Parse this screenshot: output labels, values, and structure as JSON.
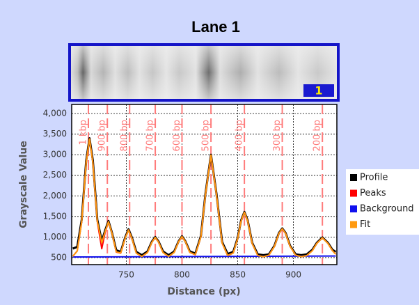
{
  "gel": {
    "lane_label": "1"
  },
  "chart_data": {
    "type": "line",
    "title": "Lane 1",
    "x_label": "Distance (px)",
    "y_label": "Grayscale Value",
    "xlim": [
      701,
      939
    ],
    "ylim": [
      330,
      4220
    ],
    "xticks": [
      750,
      800,
      850,
      900
    ],
    "yticks": [
      500,
      {
        "value": 1000,
        "label": "1,000"
      },
      {
        "value": 1500,
        "label": "1,500"
      },
      {
        "value": 2000,
        "label": "2,000"
      },
      {
        "value": 2500,
        "label": "2,500"
      },
      {
        "value": 3000,
        "label": "3,000"
      },
      {
        "value": 3500,
        "label": "3,500"
      },
      {
        "value": 4000,
        "label": "4,000"
      }
    ],
    "grid": true,
    "legend": "right",
    "markers_color": "#ff7b7b",
    "markers": [
      {
        "x": 716,
        "label": "1 kbp"
      },
      {
        "x": 733,
        "label": "900 bp"
      },
      {
        "x": 753,
        "label": "800 bp"
      },
      {
        "x": 776,
        "label": "700 bp"
      },
      {
        "x": 800,
        "label": "600 bp"
      },
      {
        "x": 826,
        "label": "500 bp"
      },
      {
        "x": 856,
        "label": "400 bp"
      },
      {
        "x": 890,
        "label": "300 bp"
      },
      {
        "x": 926,
        "label": "200 bp"
      }
    ],
    "x": [
      702,
      706,
      710,
      714,
      717,
      720,
      724,
      728,
      731,
      734,
      737,
      741,
      745,
      749,
      752,
      755,
      759,
      764,
      769,
      773,
      776,
      779,
      783,
      788,
      793,
      797,
      800,
      803,
      807,
      812,
      817,
      821,
      826,
      831,
      836,
      841,
      846,
      850,
      853,
      856,
      859,
      863,
      868,
      873,
      878,
      883,
      887,
      890,
      893,
      897,
      902,
      907,
      912,
      917,
      921,
      926,
      931,
      935,
      938
    ],
    "series": [
      {
        "name": "Profile",
        "color": "#000000",
        "values": [
          720,
          760,
          1420,
          2850,
          3400,
          2860,
          1420,
          900,
          1160,
          1390,
          1120,
          680,
          640,
          990,
          1190,
          990,
          640,
          560,
          650,
          890,
          1000,
          890,
          650,
          560,
          650,
          900,
          1020,
          900,
          650,
          600,
          1030,
          2040,
          3000,
          2040,
          880,
          590,
          640,
          980,
          1400,
          1610,
          1400,
          860,
          580,
          560,
          580,
          790,
          1100,
          1210,
          1100,
          790,
          580,
          560,
          580,
          690,
          860,
          990,
          860,
          690,
          640
        ]
      },
      {
        "name": "Peaks",
        "color": "#ff0000",
        "values": [
          531,
          663,
          1372,
          2810,
          3380,
          2810,
          1372,
          716,
          1109,
          1370,
          1109,
          635,
          608,
          971,
          1170,
          971,
          608,
          525,
          622,
          875,
          990,
          875,
          622,
          525,
          626,
          890,
          1010,
          890,
          626,
          569,
          1009,
          2018,
          2990,
          2018,
          854,
          547,
          612,
          963,
          1384,
          1600,
          1384,
          842,
          551,
          522,
          558,
          775,
          1088,
          1200,
          1088,
          775,
          558,
          523,
          550,
          669,
          845,
          980,
          845,
          669,
          582
        ]
      },
      {
        "name": "Background",
        "color": "#1010ee",
        "x": [
          702,
          938
        ],
        "values": [
          515,
          540
        ]
      },
      {
        "name": "Fit",
        "color": "#ff9a10",
        "values": [
          531,
          663,
          1372,
          2810,
          3380,
          2810,
          1386,
          859,
          1132,
          1372,
          1109,
          640,
          614,
          971,
          1170,
          971,
          608,
          527,
          622,
          875,
          990,
          875,
          622,
          530,
          626,
          890,
          1010,
          890,
          628,
          574,
          1009,
          2018,
          2990,
          2018,
          854,
          551,
          612,
          963,
          1384,
          1600,
          1384,
          842,
          551,
          522,
          558,
          775,
          1088,
          1200,
          1088,
          775,
          558,
          525,
          550,
          669,
          845,
          980,
          845,
          669,
          582
        ]
      }
    ]
  }
}
